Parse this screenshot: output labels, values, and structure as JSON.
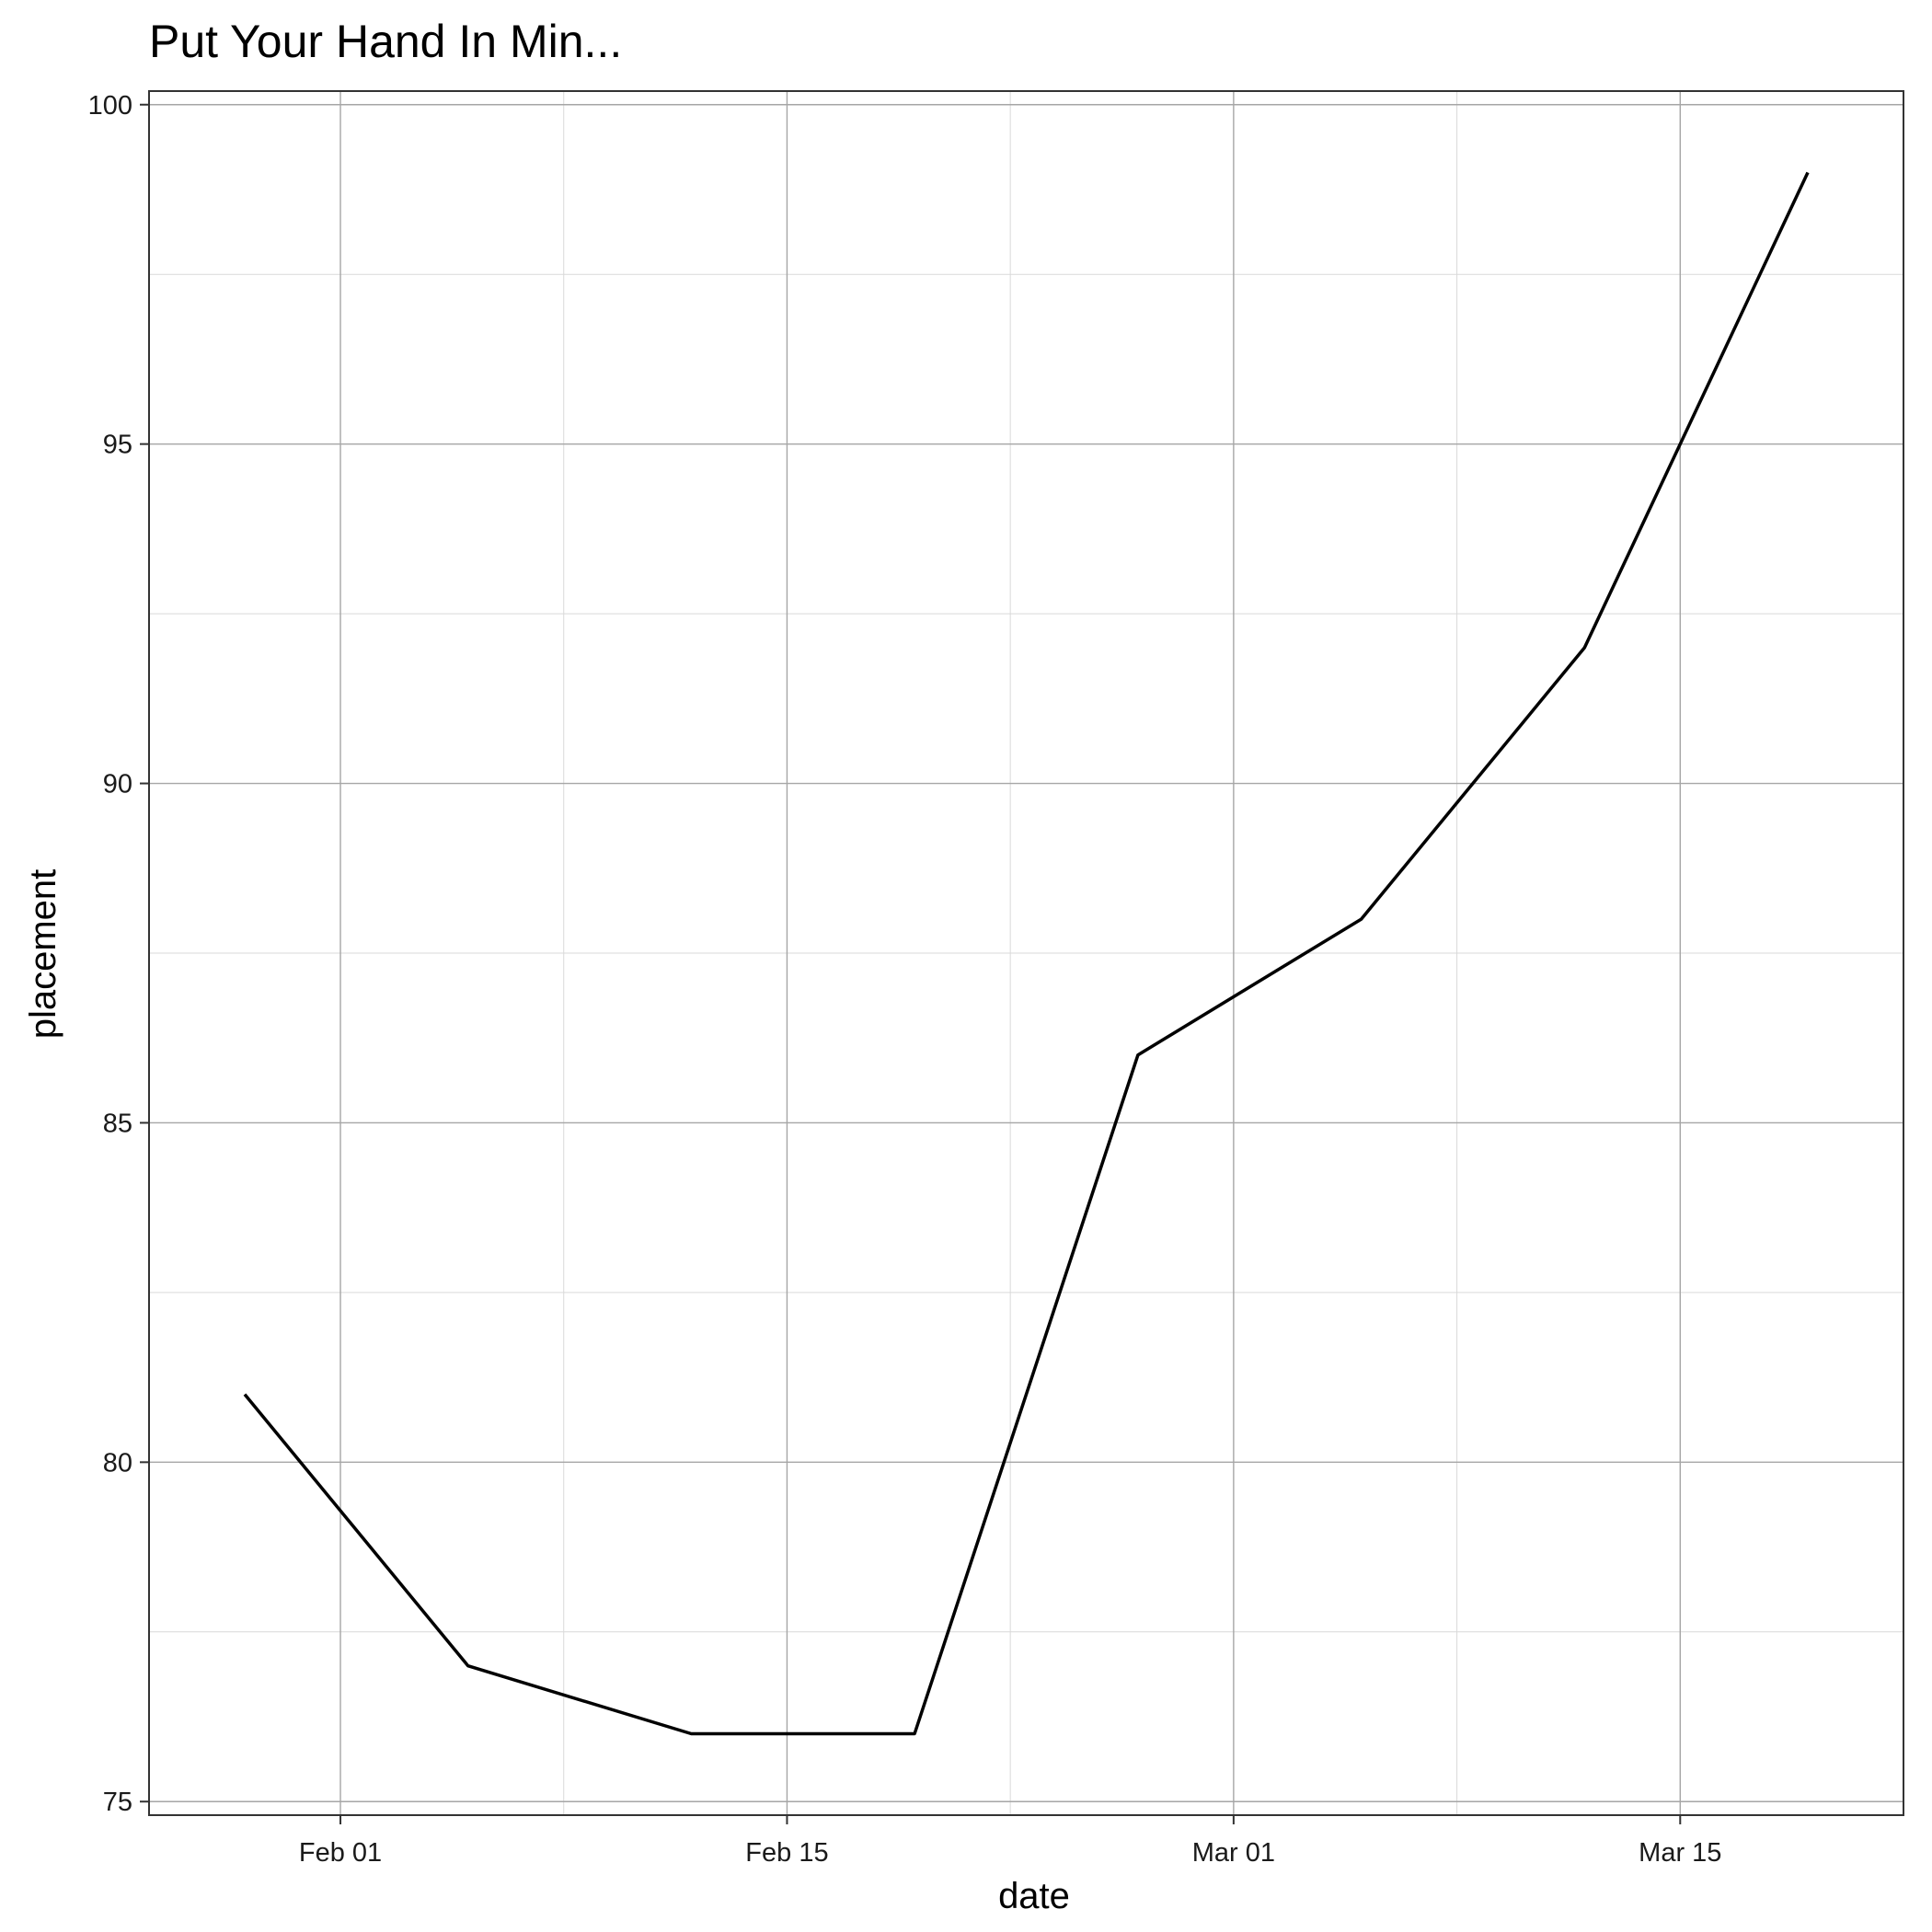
{
  "chart_data": {
    "type": "line",
    "title": "Put Your Hand In Min...",
    "xlabel": "date",
    "ylabel": "placement",
    "x_ticks": [
      {
        "date": "2021-02-01",
        "label": "Feb 01"
      },
      {
        "date": "2021-02-15",
        "label": "Feb 15"
      },
      {
        "date": "2021-03-01",
        "label": "Mar 01"
      },
      {
        "date": "2021-03-15",
        "label": "Mar 15"
      }
    ],
    "x_minor_ticks": [
      "2021-02-08",
      "2021-02-22",
      "2021-03-08"
    ],
    "y_ticks": [
      75,
      80,
      85,
      90,
      95,
      100
    ],
    "y_minor_ticks": [
      77.5,
      82.5,
      87.5,
      92.5,
      97.5
    ],
    "xlim": [
      "2021-01-26",
      "2021-03-22"
    ],
    "ylim": [
      74.8,
      100.2
    ],
    "grid": true,
    "legend": "none",
    "line_color": "#000000",
    "series": [
      {
        "x": [
          "2021-01-29",
          "2021-02-05",
          "2021-02-12",
          "2021-02-19",
          "2021-02-26",
          "2021-03-05",
          "2021-03-12",
          "2021-03-19"
        ],
        "values": [
          81,
          77,
          76,
          76,
          86,
          88,
          92,
          99
        ]
      }
    ]
  }
}
